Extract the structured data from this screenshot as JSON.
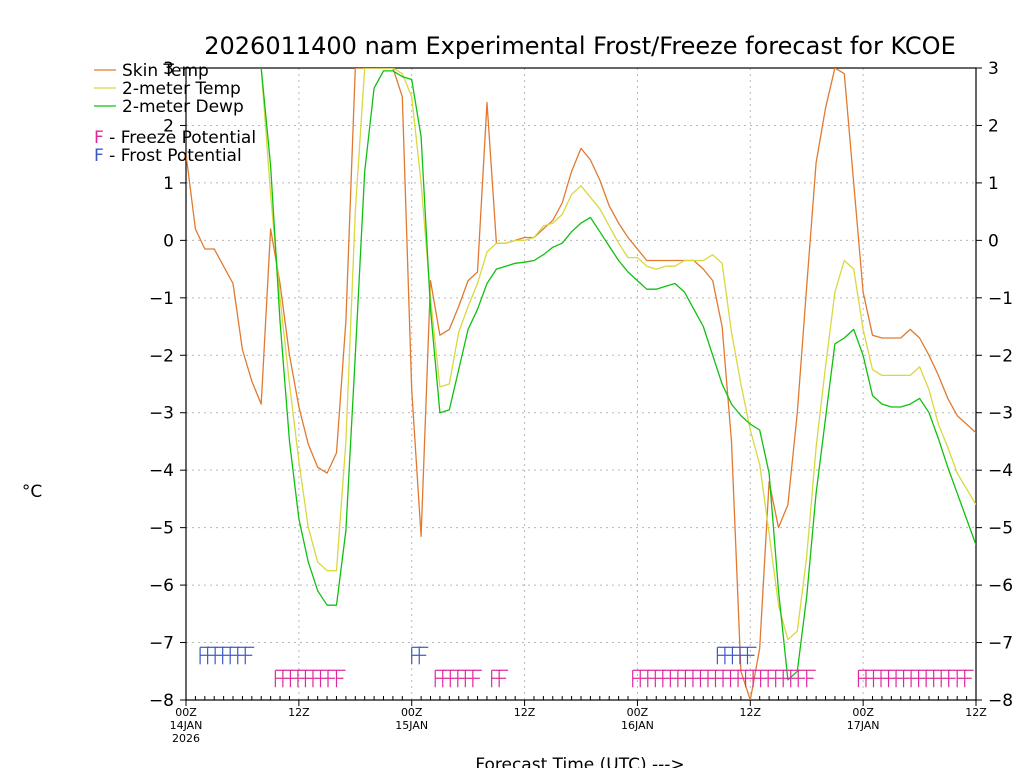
{
  "chart_data": {
    "type": "line",
    "title": "2026011400 nam Experimental Frost/Freeze forecast for KCOE",
    "xlabel": "Forecast Time (UTC) --->",
    "ylabel": "°C",
    "ylim": [
      -8,
      3
    ],
    "xlim": [
      0,
      84
    ],
    "yticks": [
      -8,
      -7,
      -6,
      -5,
      -4,
      -3,
      -2,
      -1,
      0,
      1,
      2,
      3
    ],
    "yticks_right": [
      -8,
      -7,
      -6,
      -5,
      -4,
      -3,
      -2,
      -1,
      0,
      1,
      2,
      3
    ],
    "xticks": [
      {
        "x": 0,
        "label": "00Z",
        "date1": "14JAN",
        "date2": "2026"
      },
      {
        "x": 12,
        "label": "12Z",
        "date1": "",
        "date2": ""
      },
      {
        "x": 24,
        "label": "00Z",
        "date1": "15JAN",
        "date2": ""
      },
      {
        "x": 36,
        "label": "12Z",
        "date1": "",
        "date2": ""
      },
      {
        "x": 48,
        "label": "00Z",
        "date1": "16JAN",
        "date2": ""
      },
      {
        "x": 60,
        "label": "12Z",
        "date1": "",
        "date2": ""
      },
      {
        "x": 72,
        "label": "00Z",
        "date1": "17JAN",
        "date2": ""
      },
      {
        "x": 84,
        "label": "12Z",
        "date1": "",
        "date2": ""
      }
    ],
    "grid": true,
    "legend_position": "top-left",
    "series": [
      {
        "name": "Skin Temp",
        "color": "#e07a30",
        "points": [
          [
            0,
            1.5
          ],
          [
            1,
            0.2
          ],
          [
            2,
            -0.15
          ],
          [
            3,
            -0.15
          ],
          [
            5,
            -0.75
          ],
          [
            6,
            -1.9
          ],
          [
            7,
            -2.45
          ],
          [
            8,
            -2.85
          ],
          [
            9,
            0.2
          ],
          [
            10,
            -0.75
          ],
          [
            11,
            -2.0
          ],
          [
            12,
            -2.9
          ],
          [
            13,
            -3.55
          ],
          [
            14,
            -3.95
          ],
          [
            15,
            -4.05
          ],
          [
            16,
            -3.7
          ],
          [
            17,
            -1.4
          ],
          [
            18,
            3.0
          ],
          [
            19,
            3.0
          ],
          [
            22,
            3.0
          ],
          [
            23,
            2.5
          ],
          [
            24,
            -2.6
          ],
          [
            25,
            -5.15
          ],
          [
            26,
            -0.7
          ],
          [
            27,
            -1.65
          ],
          [
            28,
            -1.55
          ],
          [
            29,
            -1.15
          ],
          [
            30,
            -0.7
          ],
          [
            31,
            -0.55
          ],
          [
            32,
            2.4
          ],
          [
            33,
            -0.05
          ],
          [
            34,
            -0.05
          ],
          [
            35,
            0.0
          ],
          [
            36,
            0.05
          ],
          [
            37,
            0.05
          ],
          [
            38,
            0.2
          ],
          [
            39,
            0.35
          ],
          [
            40,
            0.65
          ],
          [
            41,
            1.2
          ],
          [
            42,
            1.6
          ],
          [
            43,
            1.4
          ],
          [
            44,
            1.05
          ],
          [
            45,
            0.6
          ],
          [
            46,
            0.3
          ],
          [
            47,
            0.05
          ],
          [
            48,
            -0.15
          ],
          [
            49,
            -0.35
          ],
          [
            52,
            -0.35
          ],
          [
            53,
            -0.35
          ],
          [
            54,
            -0.35
          ],
          [
            55,
            -0.5
          ],
          [
            56,
            -0.7
          ],
          [
            57,
            -1.5
          ],
          [
            58,
            -3.5
          ],
          [
            59,
            -7.5
          ],
          [
            60,
            -8.0
          ],
          [
            61,
            -7.1
          ],
          [
            62,
            -4.2
          ],
          [
            63,
            -5.0
          ],
          [
            64,
            -4.6
          ],
          [
            65,
            -3.0
          ],
          [
            66,
            -0.8
          ],
          [
            67,
            1.35
          ],
          [
            68,
            2.3
          ],
          [
            69,
            3.0
          ],
          [
            70,
            2.9
          ],
          [
            71,
            1.0
          ],
          [
            72,
            -0.9
          ],
          [
            73,
            -1.65
          ],
          [
            74,
            -1.7
          ],
          [
            76,
            -1.7
          ],
          [
            77,
            -1.55
          ],
          [
            78,
            -1.7
          ],
          [
            79,
            -2.0
          ],
          [
            80,
            -2.35
          ],
          [
            81,
            -2.75
          ],
          [
            82,
            -3.05
          ],
          [
            84,
            -3.35
          ]
        ]
      },
      {
        "name": "2-meter Temp",
        "color": "#d8d840",
        "points": [
          [
            8,
            3.0
          ],
          [
            9,
            0.8
          ],
          [
            10,
            -1.0
          ],
          [
            11,
            -2.5
          ],
          [
            12,
            -3.85
          ],
          [
            13,
            -5.0
          ],
          [
            14,
            -5.6
          ],
          [
            15,
            -5.75
          ],
          [
            16,
            -5.75
          ],
          [
            17,
            -3.5
          ],
          [
            18,
            0.5
          ],
          [
            19,
            3.0
          ],
          [
            22,
            3.0
          ],
          [
            23,
            2.9
          ],
          [
            24,
            2.5
          ],
          [
            25,
            1.0
          ],
          [
            26,
            -1.0
          ],
          [
            27,
            -2.55
          ],
          [
            28,
            -2.5
          ],
          [
            29,
            -1.6
          ],
          [
            30,
            -1.15
          ],
          [
            31,
            -0.75
          ],
          [
            32,
            -0.2
          ],
          [
            33,
            -0.05
          ],
          [
            34,
            -0.05
          ],
          [
            35,
            0.0
          ],
          [
            36,
            0.0
          ],
          [
            37,
            0.05
          ],
          [
            38,
            0.25
          ],
          [
            39,
            0.3
          ],
          [
            40,
            0.45
          ],
          [
            41,
            0.8
          ],
          [
            42,
            0.95
          ],
          [
            43,
            0.75
          ],
          [
            44,
            0.55
          ],
          [
            45,
            0.25
          ],
          [
            46,
            -0.05
          ],
          [
            47,
            -0.3
          ],
          [
            48,
            -0.3
          ],
          [
            49,
            -0.45
          ],
          [
            50,
            -0.5
          ],
          [
            51,
            -0.45
          ],
          [
            52,
            -0.45
          ],
          [
            53,
            -0.35
          ],
          [
            54,
            -0.35
          ],
          [
            55,
            -0.35
          ],
          [
            56,
            -0.25
          ],
          [
            57,
            -0.4
          ],
          [
            58,
            -1.6
          ],
          [
            59,
            -2.5
          ],
          [
            60,
            -3.3
          ],
          [
            61,
            -3.9
          ],
          [
            62,
            -5.1
          ],
          [
            63,
            -6.35
          ],
          [
            64,
            -6.95
          ],
          [
            65,
            -6.8
          ],
          [
            66,
            -5.5
          ],
          [
            67,
            -3.6
          ],
          [
            68,
            -2.2
          ],
          [
            69,
            -0.9
          ],
          [
            70,
            -0.35
          ],
          [
            71,
            -0.5
          ],
          [
            72,
            -1.55
          ],
          [
            73,
            -2.25
          ],
          [
            74,
            -2.35
          ],
          [
            75,
            -2.35
          ],
          [
            76,
            -2.35
          ],
          [
            77,
            -2.35
          ],
          [
            78,
            -2.2
          ],
          [
            79,
            -2.6
          ],
          [
            80,
            -3.2
          ],
          [
            81,
            -3.6
          ],
          [
            82,
            -4.05
          ],
          [
            84,
            -4.6
          ]
        ]
      },
      {
        "name": "2-meter Dewp",
        "color": "#10c010",
        "points": [
          [
            8,
            3.0
          ],
          [
            9,
            1.3
          ],
          [
            10,
            -1.4
          ],
          [
            11,
            -3.5
          ],
          [
            12,
            -4.85
          ],
          [
            13,
            -5.6
          ],
          [
            14,
            -6.1
          ],
          [
            15,
            -6.35
          ],
          [
            16,
            -6.35
          ],
          [
            17,
            -5.05
          ],
          [
            18,
            -2.0
          ],
          [
            19,
            1.2
          ],
          [
            20,
            2.65
          ],
          [
            21,
            2.95
          ],
          [
            22,
            2.95
          ],
          [
            23,
            2.85
          ],
          [
            24,
            2.8
          ],
          [
            25,
            1.8
          ],
          [
            26,
            -1.2
          ],
          [
            27,
            -3.0
          ],
          [
            28,
            -2.95
          ],
          [
            29,
            -2.25
          ],
          [
            30,
            -1.55
          ],
          [
            31,
            -1.2
          ],
          [
            32,
            -0.75
          ],
          [
            33,
            -0.5
          ],
          [
            34,
            -0.45
          ],
          [
            35,
            -0.4
          ],
          [
            36,
            -0.38
          ],
          [
            37,
            -0.35
          ],
          [
            38,
            -0.25
          ],
          [
            39,
            -0.12
          ],
          [
            40,
            -0.05
          ],
          [
            41,
            0.15
          ],
          [
            42,
            0.3
          ],
          [
            43,
            0.4
          ],
          [
            44,
            0.15
          ],
          [
            45,
            -0.1
          ],
          [
            46,
            -0.35
          ],
          [
            47,
            -0.55
          ],
          [
            48,
            -0.7
          ],
          [
            49,
            -0.85
          ],
          [
            50,
            -0.85
          ],
          [
            51,
            -0.8
          ],
          [
            52,
            -0.75
          ],
          [
            53,
            -0.9
          ],
          [
            54,
            -1.2
          ],
          [
            55,
            -1.5
          ],
          [
            56,
            -2.0
          ],
          [
            57,
            -2.5
          ],
          [
            58,
            -2.85
          ],
          [
            59,
            -3.05
          ],
          [
            60,
            -3.2
          ],
          [
            61,
            -3.3
          ],
          [
            62,
            -4.05
          ],
          [
            63,
            -6.1
          ],
          [
            64,
            -7.65
          ],
          [
            65,
            -7.5
          ],
          [
            66,
            -6.2
          ],
          [
            67,
            -4.4
          ],
          [
            68,
            -3.1
          ],
          [
            69,
            -1.8
          ],
          [
            70,
            -1.7
          ],
          [
            71,
            -1.55
          ],
          [
            72,
            -2.0
          ],
          [
            73,
            -2.7
          ],
          [
            74,
            -2.85
          ],
          [
            75,
            -2.9
          ],
          [
            76,
            -2.9
          ],
          [
            77,
            -2.85
          ],
          [
            78,
            -2.75
          ],
          [
            79,
            -3.0
          ],
          [
            80,
            -3.45
          ],
          [
            81,
            -3.95
          ],
          [
            82,
            -4.4
          ],
          [
            84,
            -5.3
          ]
        ]
      }
    ],
    "legend": {
      "entries": [
        {
          "label": "Skin Temp",
          "color": "#e07a30"
        },
        {
          "label": "2-meter Temp",
          "color": "#d8d840"
        },
        {
          "label": "2-meter Dewp",
          "color": "#10c010"
        }
      ],
      "flag_entries": [
        {
          "letter": "F",
          "text": " - Freeze Potential",
          "color": "#e0289a"
        },
        {
          "letter": "F",
          "text": " - Frost Potential",
          "color": "#3a58c8"
        }
      ]
    },
    "flags": {
      "frost": {
        "color": "#3a58c8",
        "y": -7.1,
        "x": [
          1.5,
          2.3,
          3.1,
          3.9,
          4.7,
          5.5,
          6.3,
          24,
          24.8,
          56.5,
          57.3,
          58.1,
          58.9,
          59.7
        ]
      },
      "freeze": {
        "color": "#e0289a",
        "y": -7.5,
        "x": [
          9.5,
          10.3,
          11.1,
          11.9,
          12.7,
          13.5,
          14.3,
          15.1,
          16.0,
          26.5,
          27.3,
          28.1,
          28.9,
          29.7,
          30.5,
          32.5,
          33.3,
          47.5,
          48.3,
          49.1,
          49.9,
          50.7,
          51.5,
          52.3,
          53.1,
          53.9,
          54.7,
          55.5,
          56.3,
          57.1,
          57.9,
          58.7,
          59.5,
          60.3,
          61.1,
          61.9,
          62.7,
          63.5,
          64.3,
          65.1,
          66.0,
          71.5,
          72.3,
          73.1,
          73.9,
          74.7,
          75.5,
          76.3,
          77.1,
          77.9,
          78.7,
          79.5,
          80.3,
          81.1,
          82.0,
          82.8
        ]
      }
    }
  }
}
